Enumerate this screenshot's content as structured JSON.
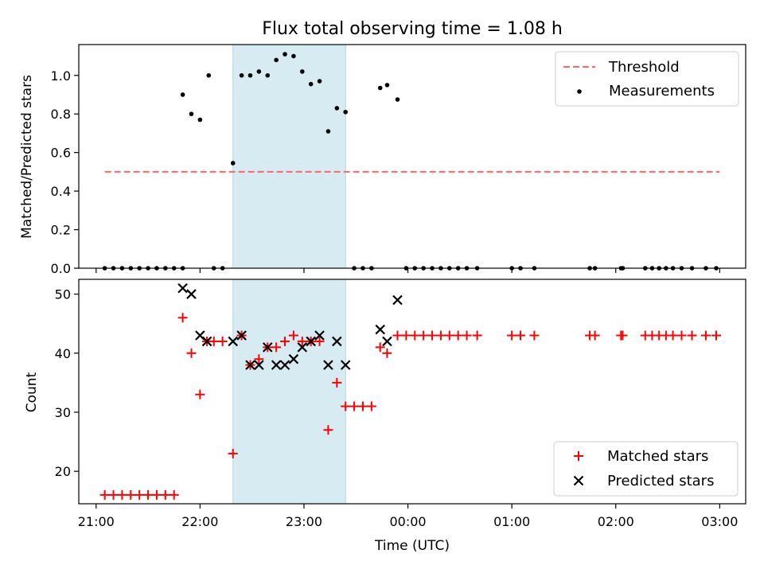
{
  "chart_data": [
    {
      "type": "scatter",
      "title": "Flux total observing time = 1.08 h",
      "ylabel": "Matched/Predicted stars",
      "xlabel": "",
      "xlim": [
        "20:50",
        "03:15"
      ],
      "ylim": [
        0,
        1.16
      ],
      "yticks": [
        "0.0",
        "0.2",
        "0.4",
        "0.6",
        "0.8",
        "1.0"
      ],
      "yticks_values": [
        0,
        0.2,
        0.4,
        0.6,
        0.8,
        1.0
      ],
      "shaded_interval": [
        "22:19",
        "23:24"
      ],
      "shaded_color": "#add8e6",
      "legend_position": "upper right",
      "series": [
        {
          "name": "Threshold",
          "kind": "line",
          "style": "dashed",
          "color": "#ff6666",
          "x": [
            "21:05",
            "03:00"
          ],
          "y": [
            0.5,
            0.5
          ]
        },
        {
          "name": "Measurements",
          "kind": "scatter",
          "marker": "dot",
          "color": "#000000",
          "x": [
            "21:05",
            "21:10",
            "21:15",
            "21:20",
            "21:25",
            "21:30",
            "21:35",
            "21:40",
            "21:45",
            "21:50",
            "21:50",
            "21:55",
            "22:00",
            "22:05",
            "22:08",
            "22:13",
            "22:19",
            "22:24",
            "22:29",
            "22:34",
            "22:39",
            "22:44",
            "22:49",
            "22:54",
            "22:59",
            "23:04",
            "23:09",
            "23:14",
            "23:19",
            "23:24",
            "23:29",
            "23:34",
            "23:39",
            "23:44",
            "23:48",
            "23:54",
            "23:59",
            "00:04",
            "00:09",
            "00:14",
            "00:19",
            "00:24",
            "00:29",
            "00:34",
            "00:40",
            "01:00",
            "01:05",
            "01:13",
            "01:45",
            "01:48",
            "02:03",
            "02:04",
            "02:17",
            "02:21",
            "02:25",
            "02:29",
            "02:33",
            "02:38",
            "02:44",
            "02:52",
            "02:58"
          ],
          "y": [
            0,
            0,
            0,
            0,
            0,
            0,
            0,
            0,
            0,
            0.9,
            0,
            0.8,
            0.77,
            1.0,
            0,
            0,
            0.545,
            1.0,
            1.0,
            1.02,
            1.0,
            1.08,
            1.11,
            1.1,
            1.02,
            0.955,
            0.97,
            0.71,
            0.83,
            0.81,
            0,
            0,
            0,
            0.935,
            0.95,
            0.875,
            0,
            0,
            0,
            0,
            0,
            0,
            0,
            0,
            0,
            0,
            0,
            0,
            0,
            0,
            0,
            0,
            0,
            0,
            0,
            0,
            0,
            0,
            0,
            0,
            0
          ]
        }
      ]
    },
    {
      "type": "scatter",
      "title": "",
      "ylabel": "Count",
      "xlabel": "Time (UTC)",
      "xlim": [
        "20:50",
        "03:15"
      ],
      "ylim": [
        14.5,
        52.5
      ],
      "yticks": [
        "20",
        "30",
        "40",
        "50"
      ],
      "yticks_values": [
        20,
        30,
        40,
        50
      ],
      "xticks": [
        "21:00",
        "22:00",
        "23:00",
        "00:00",
        "01:00",
        "02:00",
        "03:00"
      ],
      "shaded_interval": [
        "22:19",
        "23:24"
      ],
      "shaded_color": "#add8e6",
      "legend_position": "lower right",
      "series": [
        {
          "name": "Matched stars",
          "kind": "scatter",
          "marker": "plus",
          "color": "#ff0000",
          "x": [
            "21:05",
            "21:10",
            "21:15",
            "21:20",
            "21:25",
            "21:30",
            "21:35",
            "21:40",
            "21:45",
            "21:50",
            "21:55",
            "22:00",
            "22:04",
            "22:08",
            "22:13",
            "22:19",
            "22:24",
            "22:29",
            "22:34",
            "22:39",
            "22:44",
            "22:49",
            "22:54",
            "22:59",
            "23:04",
            "23:09",
            "23:14",
            "23:19",
            "23:24",
            "23:29",
            "23:34",
            "23:39",
            "23:44",
            "23:48",
            "23:54",
            "23:59",
            "00:04",
            "00:09",
            "00:14",
            "00:19",
            "00:24",
            "00:29",
            "00:34",
            "00:40",
            "01:00",
            "01:05",
            "01:13",
            "01:45",
            "01:48",
            "02:03",
            "02:04",
            "02:17",
            "02:21",
            "02:25",
            "02:29",
            "02:33",
            "02:38",
            "02:44",
            "02:52",
            "02:58"
          ],
          "y": [
            16,
            16,
            16,
            16,
            16,
            16,
            16,
            16,
            16,
            46,
            40,
            33,
            42,
            42,
            42,
            23,
            43,
            38,
            39,
            41,
            41,
            42,
            43,
            42,
            42,
            42,
            27,
            35,
            31,
            31,
            31,
            31,
            41,
            40,
            43,
            43,
            43,
            43,
            43,
            43,
            43,
            43,
            43,
            43,
            43,
            43,
            43,
            43,
            43,
            43,
            43,
            43,
            43,
            43,
            43,
            43,
            43,
            43,
            43,
            43
          ]
        },
        {
          "name": "Predicted stars",
          "kind": "scatter",
          "marker": "x",
          "color": "#000000",
          "x": [
            "21:50",
            "21:55",
            "22:00",
            "22:04",
            "22:19",
            "22:24",
            "22:29",
            "22:34",
            "22:39",
            "22:44",
            "22:49",
            "22:54",
            "22:59",
            "23:04",
            "23:09",
            "23:14",
            "23:19",
            "23:24",
            "23:44",
            "23:48",
            "23:54"
          ],
          "y": [
            51,
            50,
            43,
            42,
            42,
            43,
            38,
            38,
            41,
            38,
            38,
            39,
            41,
            42,
            43,
            38,
            42,
            38,
            44,
            42,
            49
          ]
        }
      ]
    }
  ]
}
